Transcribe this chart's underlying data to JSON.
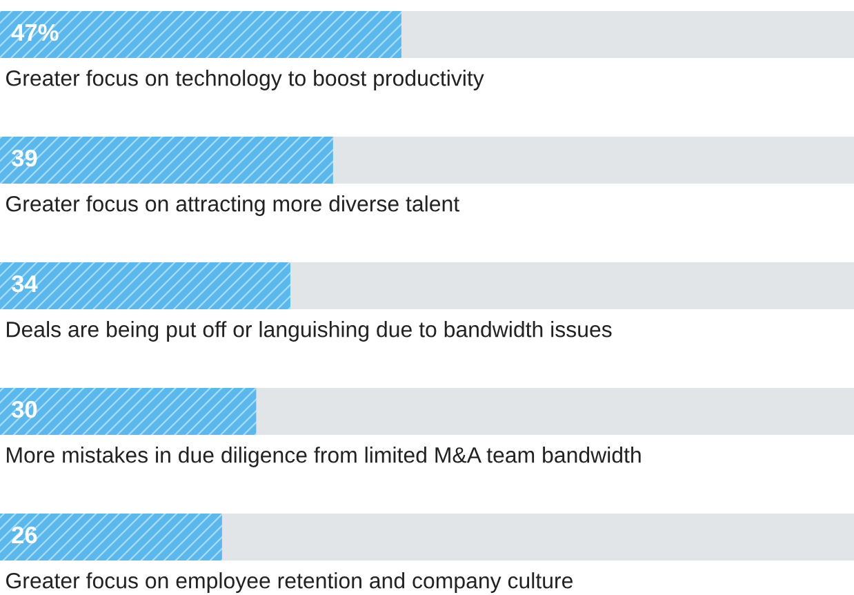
{
  "chart_data": {
    "type": "bar",
    "orientation": "horizontal",
    "categories": [
      "Greater focus on technology to boost productivity",
      "Greater focus on attracting more diverse talent",
      "Deals are being put off or languishing due to bandwidth issues",
      "More mistakes in due diligence from limited M&A team bandwidth",
      "Greater focus on employee retention and company culture"
    ],
    "values": [
      47,
      39,
      34,
      30,
      26
    ],
    "value_labels": [
      "47%",
      "39",
      "34",
      "30",
      "26"
    ],
    "color": "#5bb8ec",
    "xlim": [
      0,
      100
    ]
  }
}
